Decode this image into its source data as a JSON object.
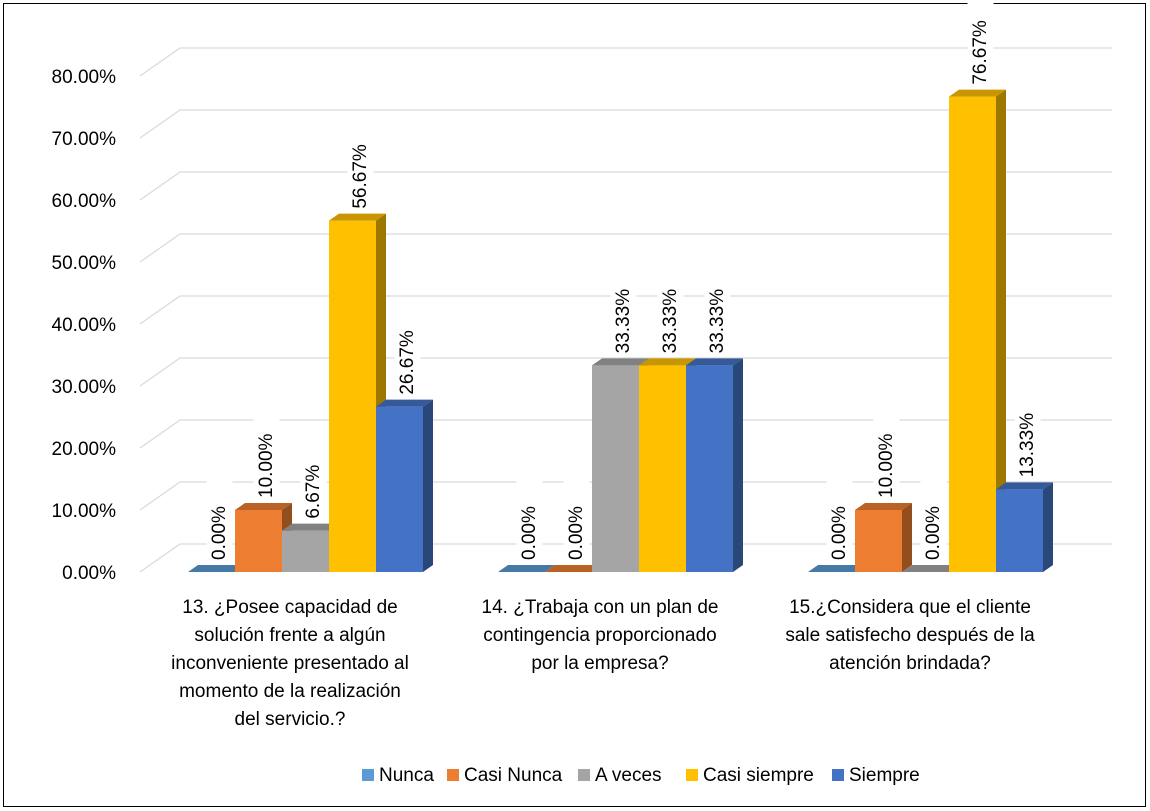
{
  "chart_data": {
    "type": "bar",
    "title": "",
    "xlabel": "",
    "ylabel": "",
    "ylim": [
      0,
      0.8
    ],
    "y_ticks": [
      "0.00%",
      "10.00%",
      "20.00%",
      "30.00%",
      "40.00%",
      "50.00%",
      "60.00%",
      "70.00%",
      "80.00%"
    ],
    "grid": true,
    "legend_position": "bottom",
    "style": "3d-clustered-column",
    "categories": [
      [
        "13. ¿Posee capacidad de",
        "solución frente a algún",
        "inconveniente presentado al",
        "momento de la realización",
        "del servicio.?"
      ],
      [
        "14. ¿Trabaja con un plan de",
        "contingencia proporcionado",
        "por la empresa?"
      ],
      [
        "15.¿Considera que el cliente",
        "sale satisfecho después de la",
        "atención brindada?"
      ]
    ],
    "series": [
      {
        "name": "Nunca",
        "color": "#5B9BD5",
        "values": [
          0.0,
          0.0,
          0.0
        ],
        "labels": [
          "0.00%",
          "0.00%",
          "0.00%"
        ]
      },
      {
        "name": "Casi Nunca",
        "color": "#ED7D31",
        "values": [
          0.1,
          0.0,
          0.1
        ],
        "labels": [
          "10.00%",
          "0.00%",
          "10.00%"
        ]
      },
      {
        "name": "A veces",
        "color": "#A5A5A5",
        "values": [
          0.0667,
          0.3333,
          0.0
        ],
        "labels": [
          "6.67%",
          "33.33%",
          "0.00%"
        ]
      },
      {
        "name": "Casi siempre",
        "color": "#FFC000",
        "values": [
          0.5667,
          0.3333,
          0.7667
        ],
        "labels": [
          "56.67%",
          "33.33%",
          "76.67%"
        ]
      },
      {
        "name": "Siempre",
        "color": "#4472C4",
        "values": [
          0.2667,
          0.3333,
          0.1333
        ],
        "labels": [
          "26.67%",
          "33.33%",
          "13.33%"
        ]
      }
    ]
  }
}
